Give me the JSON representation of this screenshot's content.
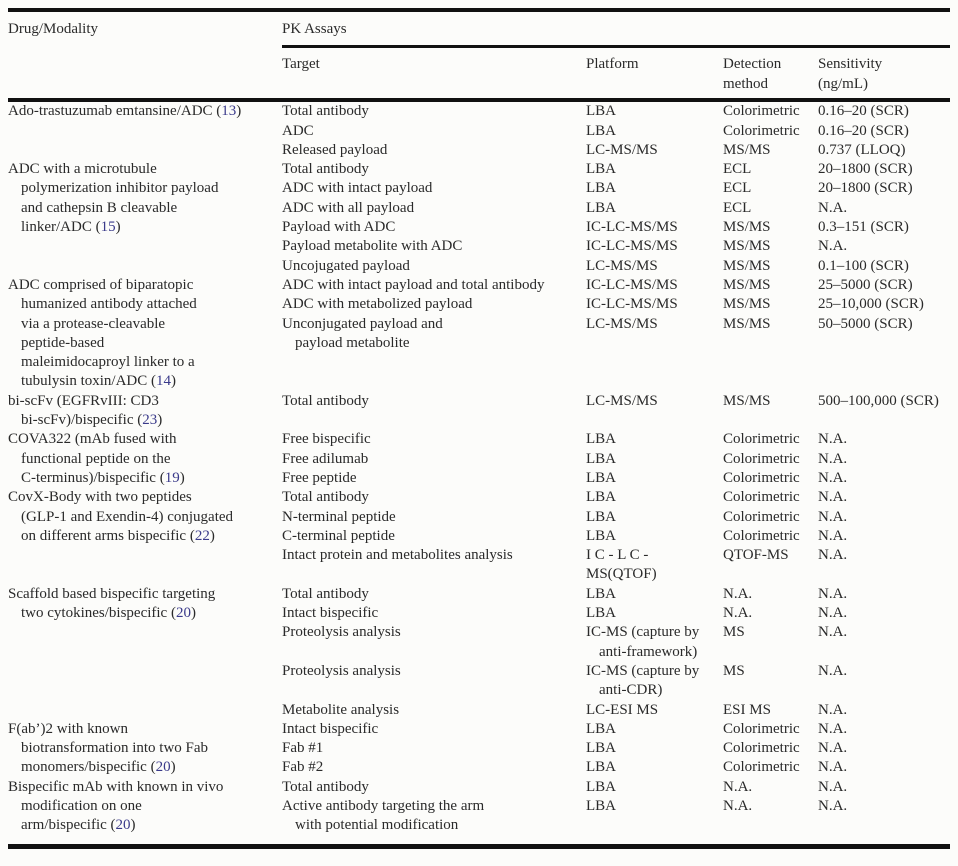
{
  "colors": {
    "background": "#fcfcfa",
    "text": "#2a2a2a",
    "rule": "#111111",
    "citation": "#3a3a8a"
  },
  "header": {
    "drug_modality": "Drug/Modality",
    "pk_assays": "PK Assays",
    "target": "Target",
    "platform": "Platform",
    "detection_method": "Detection\nmethod",
    "sensitivity": "Sensitivity\n(ng/mL)"
  },
  "groups": [
    {
      "drug": "Ado-trastuzumab emtansine/ADC",
      "citation": "13",
      "assays": [
        {
          "target": "Total antibody",
          "platform": "LBA",
          "detection": "Colorimetric",
          "sensitivity": "0.16–20 (SCR)"
        },
        {
          "target": "ADC",
          "platform": "LBA",
          "detection": "Colorimetric",
          "sensitivity": "0.16–20 (SCR)"
        },
        {
          "target": "Released payload",
          "platform": "LC-MS/MS",
          "detection": "MS/MS",
          "sensitivity": "0.737 (LLOQ)"
        }
      ]
    },
    {
      "drug": "ADC with a microtubule\n>polymerization inhibitor payload\n>and cathepsin B cleavable\n>linker/ADC",
      "citation": "15",
      "assays": [
        {
          "target": "Total antibody",
          "platform": "LBA",
          "detection": "ECL",
          "sensitivity": "20–1800 (SCR)"
        },
        {
          "target": "ADC with intact payload",
          "platform": "LBA",
          "detection": "ECL",
          "sensitivity": "20–1800 (SCR)"
        },
        {
          "target": "ADC with all payload",
          "platform": "LBA",
          "detection": "ECL",
          "sensitivity": "N.A."
        },
        {
          "target": "Payload with ADC",
          "platform": "IC-LC-MS/MS",
          "detection": "MS/MS",
          "sensitivity": "0.3–151 (SCR)"
        },
        {
          "target": "Payload metabolite with ADC",
          "platform": "IC-LC-MS/MS",
          "detection": "MS/MS",
          "sensitivity": "N.A."
        },
        {
          "target": "Uncojugated payload",
          "platform": "LC-MS/MS",
          "detection": "MS/MS",
          "sensitivity": "0.1–100 (SCR)"
        }
      ]
    },
    {
      "drug": "ADC comprised of biparatopic\n>humanized antibody attached\n>via a protease-cleavable\n>peptide-based\n>maleimidocaproyl linker to a\n>tubulysin toxin/ADC",
      "citation": "14",
      "assays": [
        {
          "target": "ADC with intact payload and total antibody",
          "platform": "IC-LC-MS/MS",
          "detection": "MS/MS",
          "sensitivity": "25–5000 (SCR)"
        },
        {
          "target": "ADC with metabolized payload",
          "platform": "IC-LC-MS/MS",
          "detection": "MS/MS",
          "sensitivity": "25–10,000 (SCR)"
        },
        {
          "target": "Unconjugated payload and\n>payload metabolite",
          "platform": "LC-MS/MS",
          "detection": "MS/MS",
          "sensitivity": "50–5000 (SCR)"
        }
      ]
    },
    {
      "drug": "bi-scFv (EGFRvIII: CD3\n>bi-scFv)/bispecific",
      "citation": "23",
      "assays": [
        {
          "target": "Total antibody",
          "platform": "LC-MS/MS",
          "detection": "MS/MS",
          "sensitivity": "500–100,000 (SCR)"
        }
      ]
    },
    {
      "drug": "COVA322 (mAb fused with\n>functional peptide on the\n>C-terminus)/bispecific",
      "citation": "19",
      "assays": [
        {
          "target": "Free bispecific",
          "platform": "LBA",
          "detection": "Colorimetric",
          "sensitivity": "N.A."
        },
        {
          "target": "Free adilumab",
          "platform": "LBA",
          "detection": "Colorimetric",
          "sensitivity": "N.A."
        },
        {
          "target": "Free peptide",
          "platform": "LBA",
          "detection": "Colorimetric",
          "sensitivity": "N.A."
        }
      ]
    },
    {
      "drug": "CovX-Body with two peptides\n>(GLP-1 and Exendin-4) conjugated\n>on different arms bispecific",
      "citation": "22",
      "assays": [
        {
          "target": "Total antibody",
          "platform": "LBA",
          "detection": "Colorimetric",
          "sensitivity": "N.A."
        },
        {
          "target": "N-terminal peptide",
          "platform": "LBA",
          "detection": "Colorimetric",
          "sensitivity": "N.A."
        },
        {
          "target": "C-terminal peptide",
          "platform": "LBA",
          "detection": "Colorimetric",
          "sensitivity": "N.A."
        },
        {
          "target": "Intact protein and metabolites analysis",
          "platform": "I C - L C -\nMS(QTOF)",
          "detection": "QTOF-MS",
          "sensitivity": "N.A."
        }
      ]
    },
    {
      "drug": "Scaffold based bispecific targeting\n>two cytokines/bispecific",
      "citation": "20",
      "assays": [
        {
          "target": "Total antibody",
          "platform": "LBA",
          "detection": "N.A.",
          "sensitivity": "N.A."
        },
        {
          "target": "Intact bispecific",
          "platform": "LBA",
          "detection": "N.A.",
          "sensitivity": "N.A."
        },
        {
          "target": "Proteolysis analysis",
          "platform": "IC-MS (capture by\n>anti-framework)",
          "detection": "MS",
          "sensitivity": "N.A."
        },
        {
          "target": "Proteolysis analysis",
          "platform": "IC-MS (capture by\n>anti-CDR)",
          "detection": "MS",
          "sensitivity": "N.A."
        },
        {
          "target": "Metabolite analysis",
          "platform": "LC-ESI MS",
          "detection": "ESI MS",
          "sensitivity": "N.A."
        }
      ]
    },
    {
      "drug": "F(ab’)2 with known\n>biotransformation into two Fab\n>monomers/bispecific",
      "citation": "20",
      "assays": [
        {
          "target": "Intact bispecific",
          "platform": "LBA",
          "detection": "Colorimetric",
          "sensitivity": "N.A."
        },
        {
          "target": "Fab #1",
          "platform": "LBA",
          "detection": "Colorimetric",
          "sensitivity": "N.A."
        },
        {
          "target": "Fab #2",
          "platform": "LBA",
          "detection": "Colorimetric",
          "sensitivity": "N.A."
        }
      ]
    },
    {
      "drug": "Bispecific mAb with known in vivo\n>modification on one\n>arm/bispecific",
      "citation": "20",
      "assays": [
        {
          "target": "Total antibody",
          "platform": "LBA",
          "detection": "N.A.",
          "sensitivity": "N.A."
        },
        {
          "target": "Active antibody targeting the arm\n>with potential modification",
          "platform": "LBA",
          "detection": "N.A.",
          "sensitivity": "N.A."
        }
      ]
    }
  ]
}
